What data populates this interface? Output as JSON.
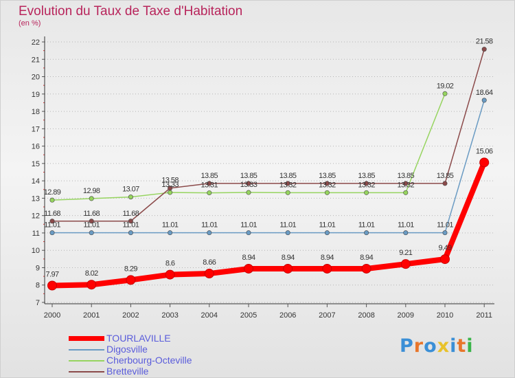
{
  "chart_data": {
    "type": "line",
    "title": "Evolution du Taux de Taxe d'Habitation",
    "subtitle": "(en %)",
    "x": [
      "2000",
      "2001",
      "2002",
      "2003",
      "2004",
      "2005",
      "2006",
      "2007",
      "2008",
      "2009",
      "2010",
      "2011"
    ],
    "ylim": [
      7,
      22
    ],
    "yticks": [
      7,
      8,
      9,
      10,
      11,
      12,
      13,
      14,
      15,
      16,
      17,
      18,
      19,
      20,
      21,
      22
    ],
    "grid": "horizontal dotted",
    "legend_position": "bottom-left",
    "series": [
      {
        "name": "TOURLAVILLE",
        "color": "#ff0000",
        "values": [
          7.97,
          8.02,
          8.29,
          8.6,
          8.66,
          8.94,
          8.94,
          8.94,
          8.94,
          9.21,
          9.49,
          15.06
        ],
        "labels": [
          "7.97",
          "8.02",
          "8.29",
          "8.6",
          "8.66",
          "8.94",
          "8.94",
          "8.94",
          "8.94",
          "9.21",
          "9.49",
          "15.06"
        ]
      },
      {
        "name": "Digosville",
        "color": "#6a9bc3",
        "values": [
          11.01,
          11.01,
          11.01,
          11.01,
          11.01,
          11.01,
          11.01,
          11.01,
          11.01,
          11.01,
          11.01,
          18.64
        ],
        "labels": [
          "11.01",
          "11.01",
          "11.01",
          "11.01",
          "11.01",
          "11.01",
          "11.01",
          "11.01",
          "11.01",
          "11.01",
          "11.01",
          "18.64"
        ]
      },
      {
        "name": "Cherbourg-Octeville",
        "color": "#96d45f",
        "values": [
          12.89,
          12.98,
          13.07,
          13.33,
          13.31,
          13.33,
          13.32,
          13.32,
          13.32,
          13.32,
          19.02,
          null
        ],
        "labels": [
          "12.89",
          "12.98",
          "13.07",
          "13.33",
          "13.31",
          "13.33",
          "13.32",
          "13.32",
          "13.32",
          "13.32",
          "19.02",
          ""
        ]
      },
      {
        "name": "Bretteville",
        "color": "#8b4a4a",
        "values": [
          11.68,
          11.68,
          11.68,
          13.58,
          13.85,
          13.85,
          13.85,
          13.85,
          13.85,
          13.85,
          13.85,
          21.58
        ],
        "labels": [
          "11.68",
          "11.68",
          "11.68",
          "13.58",
          "13.85",
          "13.85",
          "13.85",
          "13.85",
          "13.85",
          "13.85",
          "13.85",
          "21.58"
        ]
      }
    ]
  },
  "legend": {
    "items": [
      {
        "label": "TOURLAVILLE",
        "color": "#ff0000"
      },
      {
        "label": "Digosville",
        "color": "#6a9bc3"
      },
      {
        "label": "Cherbourg-Octeville",
        "color": "#96d45f"
      },
      {
        "label": "Bretteville",
        "color": "#8b4a4a"
      }
    ]
  },
  "brand": {
    "letters": [
      "P",
      "r",
      "o",
      "x",
      "i",
      "t",
      "i"
    ],
    "colors": [
      "#3b8fd6",
      "#e8762b",
      "#3b8fd6",
      "#e8c22b",
      "#3b8fd6",
      "#e8762b",
      "#3bb54a"
    ]
  }
}
